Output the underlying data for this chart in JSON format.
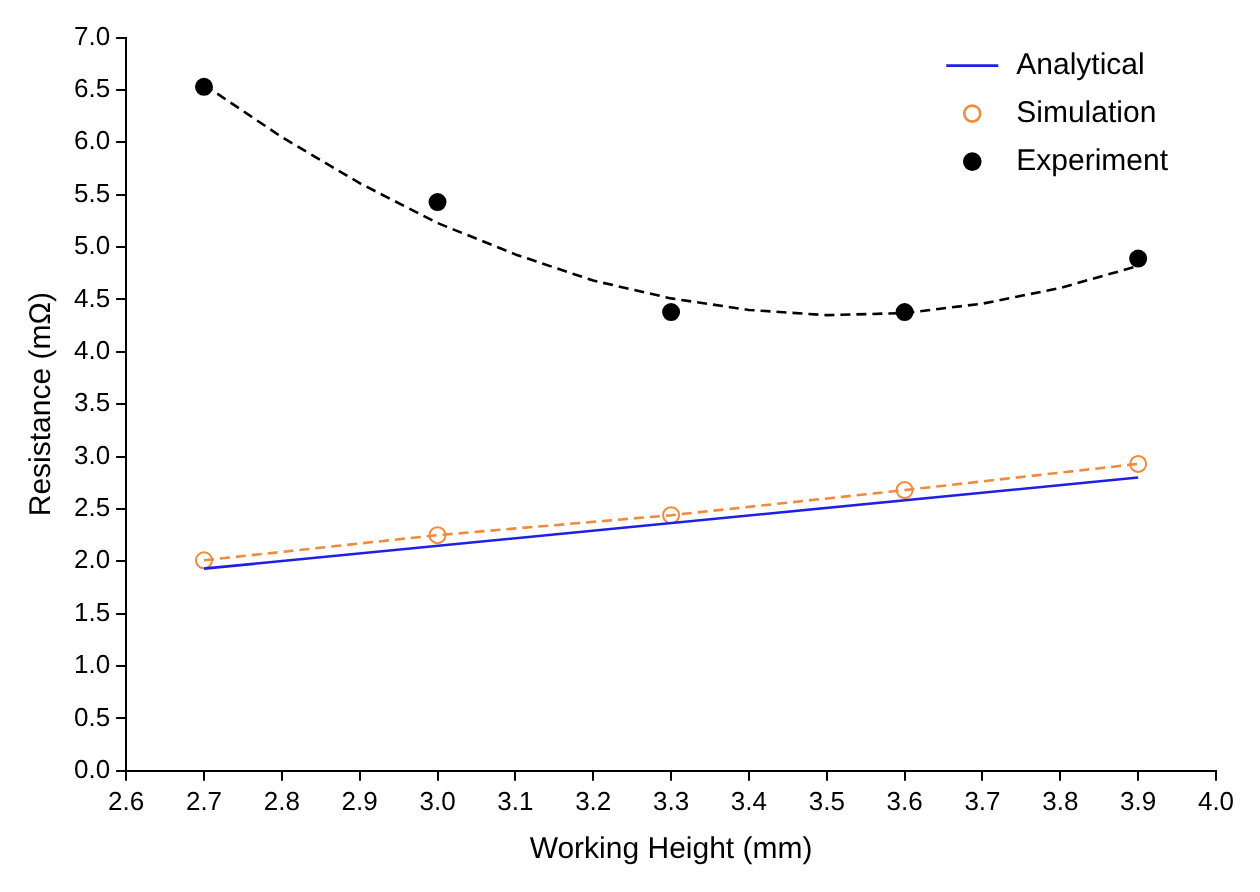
{
  "chart_data": {
    "type": "line",
    "xlabel": "Working Height (mm)",
    "ylabel": "Resistance (mΩ)",
    "xlim": [
      2.6,
      4.0
    ],
    "xticks": [
      2.6,
      2.7,
      2.8,
      2.9,
      {
        "value": 3,
        "label": "3.0"
      },
      3.1,
      3.2,
      3.3,
      3.4,
      3.5,
      3.6,
      3.7,
      3.8,
      3.9,
      {
        "value": 4,
        "label": "4.0"
      }
    ],
    "ylim": [
      0,
      7.0
    ],
    "yticks": [
      {
        "value": 0,
        "label": "0.0"
      },
      0.5,
      {
        "value": 1,
        "label": "1.0"
      },
      1.5,
      {
        "value": 2,
        "label": "2.0"
      },
      2.5,
      {
        "value": 3,
        "label": "3.0"
      },
      3.5,
      {
        "value": 4,
        "label": "4.0"
      },
      4.5,
      {
        "value": 5,
        "label": "5.0"
      },
      5.5,
      {
        "value": 6,
        "label": "6.0"
      },
      6.5,
      {
        "value": 7,
        "label": "7.0"
      }
    ],
    "grid": false,
    "legend": "top right",
    "series": [
      {
        "name": "Analytical",
        "color": "#1f1fe6",
        "x": [
          2.7,
          3.9
        ],
        "values": [
          1.93,
          2.8
        ],
        "marker": "none",
        "line_style": "solid"
      },
      {
        "name": "Simulation",
        "color": "#f08a3c",
        "x": [
          2.7,
          3.0,
          3.3,
          3.6,
          3.9
        ],
        "values": [
          2.01,
          2.25,
          2.44,
          2.68,
          2.93
        ],
        "marker": "circle",
        "line_style": "dashed"
      },
      {
        "name": "Experiment",
        "type": "scatter",
        "color": "#000000",
        "x": [
          2.7,
          3.0,
          3.3,
          3.6,
          3.9
        ],
        "values": [
          6.53,
          5.43,
          4.38,
          4.38,
          4.89
        ],
        "marker": "circle"
      },
      {
        "color": "#000000",
        "x": [
          2.7,
          2.8,
          2.9,
          3.0,
          3.1,
          3.2,
          3.3,
          3.4,
          3.5,
          3.6,
          3.7,
          3.8,
          3.9
        ],
        "values": [
          6.55,
          6.05,
          5.61,
          5.23,
          4.93,
          4.68,
          4.51,
          4.4,
          4.35,
          4.37,
          4.46,
          4.61,
          4.82
        ],
        "marker": "none",
        "line_style": "dashed"
      }
    ]
  }
}
